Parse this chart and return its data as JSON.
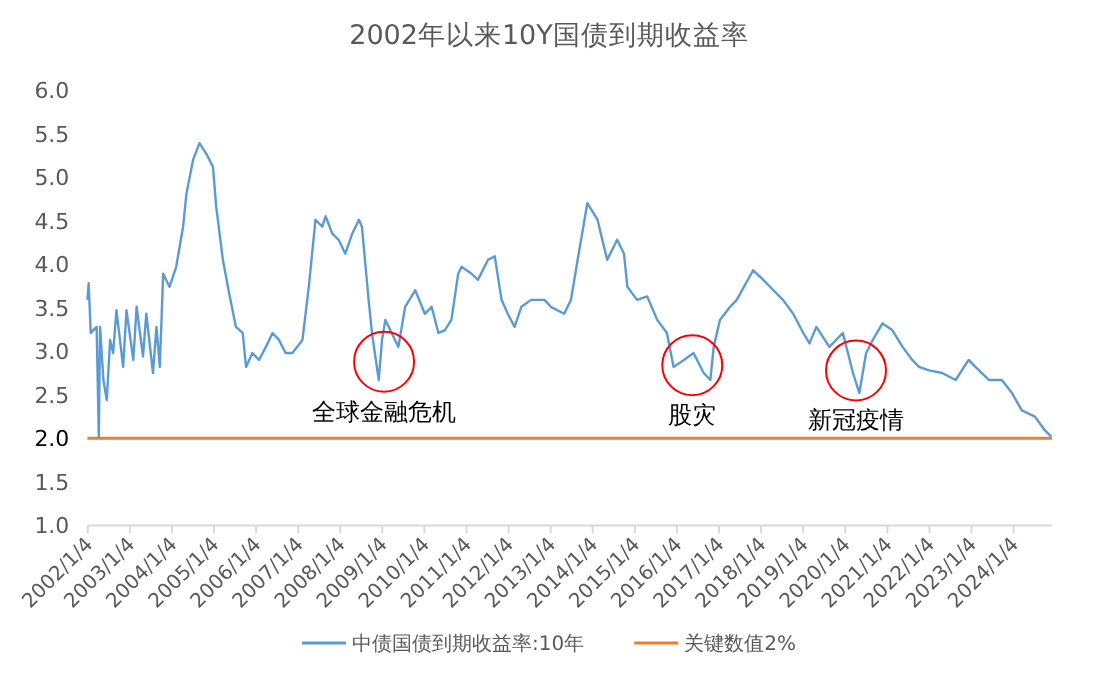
{
  "chart_data": {
    "type": "line",
    "title": "2002年以来10Y国债到期收益率",
    "series": [
      {
        "name": "中债国债到期收益率:10年",
        "color": "#5b9bd5",
        "x": [
          "2002-01-01",
          "2002-01-12",
          "2002-01-30",
          "2002-03-22",
          "2002-04-10",
          "2002-04-21",
          "2002-05-20",
          "2002-06-18",
          "2002-07-17",
          "2002-08-12",
          "2002-09-10",
          "2002-11-07",
          "2002-12-06",
          "2003-02-03",
          "2003-03-04",
          "2003-04-28",
          "2003-05-27",
          "2003-07-24",
          "2003-08-23",
          "2003-09-21",
          "2003-10-20",
          "2003-12-14",
          "2004-02-10",
          "2004-04-10",
          "2004-05-09",
          "2004-07-06",
          "2004-08-30",
          "2004-10-27",
          "2004-12-25",
          "2005-01-23",
          "2005-03-22",
          "2005-05-16",
          "2005-07-13",
          "2005-09-10",
          "2005-10-09",
          "2005-12-03",
          "2006-01-30",
          "2006-03-30",
          "2006-05-27",
          "2006-07-21",
          "2006-09-17",
          "2006-11-15",
          "2007-02-10",
          "2007-04-06",
          "2007-05-05",
          "2007-06-03",
          "2007-08-01",
          "2007-08-30",
          "2007-10-27",
          "2007-12-21",
          "2008-02-17",
          "2008-04-17",
          "2008-06-14",
          "2008-07-10",
          "2008-09-06",
          "2008-10-05",
          "2008-12-03",
          "2009-01-01",
          "2009-01-30",
          "2009-03-26",
          "2009-05-23",
          "2009-07-21",
          "2009-10-16",
          "2010-01-08",
          "2010-03-08",
          "2010-05-05",
          "2010-06-29",
          "2010-08-26",
          "2010-10-24",
          "2010-11-22",
          "2011-02-17",
          "2011-04-13",
          "2011-07-10",
          "2011-09-06",
          "2011-11-04",
          "2011-12-28",
          "2012-02-25",
          "2012-04-24",
          "2012-07-17",
          "2012-11-11",
          "2013-01-05",
          "2013-05-01",
          "2013-06-29",
          "2013-08-26",
          "2013-11-18",
          "2014-02-14",
          "2014-05-09",
          "2014-08-04",
          "2014-10-02",
          "2014-10-31",
          "2015-01-23",
          "2015-04-21",
          "2015-07-17",
          "2015-10-09",
          "2015-12-06",
          "2016-03-04",
          "2016-05-27",
          "2016-08-23",
          "2016-10-20",
          "2016-11-18",
          "2017-01-12",
          "2017-04-10",
          "2017-06-07",
          "2017-10-27",
          "2018-01-23",
          "2018-04-21",
          "2018-07-13",
          "2018-10-09",
          "2019-01-05",
          "2019-02-28",
          "2019-04-28",
          "2019-08-19",
          "2019-12-14",
          "2020-03-11",
          "2020-05-05",
          "2020-07-03",
          "2020-08-30",
          "2020-11-22",
          "2021-02-17",
          "2021-05-16",
          "2021-08-08",
          "2021-10-05",
          "2022-01-01",
          "2022-04-24",
          "2022-08-19",
          "2022-12-10",
          "2023-02-07",
          "2023-06-03",
          "2023-09-24",
          "2023-12-21",
          "2024-03-15",
          "2024-07-06",
          "2024-10-02",
          "2024-11-26"
        ],
        "values": [
          3.59,
          3.78,
          3.21,
          3.28,
          2.02,
          3.28,
          2.67,
          2.44,
          3.13,
          2.98,
          3.47,
          2.82,
          3.47,
          2.9,
          3.51,
          2.94,
          3.43,
          2.75,
          3.28,
          2.82,
          3.89,
          3.74,
          3.97,
          4.43,
          4.81,
          5.2,
          5.39,
          5.27,
          5.12,
          4.66,
          4.05,
          3.66,
          3.28,
          3.21,
          2.82,
          2.98,
          2.9,
          3.05,
          3.21,
          3.13,
          2.98,
          2.98,
          3.13,
          3.74,
          4.12,
          4.51,
          4.43,
          4.55,
          4.35,
          4.28,
          4.12,
          4.35,
          4.51,
          4.43,
          3.59,
          3.21,
          2.67,
          3.13,
          3.36,
          3.21,
          3.05,
          3.51,
          3.7,
          3.43,
          3.51,
          3.21,
          3.24,
          3.36,
          3.89,
          3.97,
          3.89,
          3.82,
          4.05,
          4.09,
          3.59,
          3.43,
          3.28,
          3.51,
          3.59,
          3.59,
          3.51,
          3.43,
          3.59,
          4.05,
          4.7,
          4.51,
          4.05,
          4.28,
          4.12,
          3.74,
          3.59,
          3.63,
          3.36,
          3.21,
          2.82,
          2.9,
          2.98,
          2.75,
          2.67,
          3.05,
          3.36,
          3.51,
          3.59,
          3.93,
          3.82,
          3.7,
          3.59,
          3.43,
          3.21,
          3.09,
          3.28,
          3.05,
          3.21,
          2.75,
          2.52,
          2.98,
          3.13,
          3.32,
          3.24,
          3.05,
          2.9,
          2.82,
          2.78,
          2.75,
          2.67,
          2.9,
          2.82,
          2.67,
          2.67,
          2.52,
          2.32,
          2.25,
          2.09,
          2.02
        ]
      }
    ],
    "xlim": [
      "2002-01-01",
      "2024-12-02"
    ],
    "xticks": [
      {
        "value": "2002-01-04",
        "label": "2002/1/4"
      },
      {
        "value": "2003-01-04",
        "label": "2003/1/4"
      },
      {
        "value": "2004-01-04",
        "label": "2004/1/4"
      },
      {
        "value": "2005-01-04",
        "label": "2005/1/4"
      },
      {
        "value": "2006-01-04",
        "label": "2006/1/4"
      },
      {
        "value": "2007-01-04",
        "label": "2007/1/4"
      },
      {
        "value": "2008-01-04",
        "label": "2008/1/4"
      },
      {
        "value": "2009-01-04",
        "label": "2009/1/4"
      },
      {
        "value": "2010-01-04",
        "label": "2010/1/4"
      },
      {
        "value": "2011-01-04",
        "label": "2011/1/4"
      },
      {
        "value": "2012-01-04",
        "label": "2012/1/4"
      },
      {
        "value": "2013-01-04",
        "label": "2013/1/4"
      },
      {
        "value": "2014-01-04",
        "label": "2014/1/4"
      },
      {
        "value": "2015-01-04",
        "label": "2015/1/4"
      },
      {
        "value": "2016-01-04",
        "label": "2016/1/4"
      },
      {
        "value": "2017-01-04",
        "label": "2017/1/4"
      },
      {
        "value": "2018-01-04",
        "label": "2018/1/4"
      },
      {
        "value": "2019-01-04",
        "label": "2019/1/4"
      },
      {
        "value": "2020-01-04",
        "label": "2020/1/4"
      },
      {
        "value": "2021-01-04",
        "label": "2021/1/4"
      },
      {
        "value": "2022-01-04",
        "label": "2022/1/4"
      },
      {
        "value": "2023-01-04",
        "label": "2023/1/4"
      },
      {
        "value": "2024-01-04",
        "label": "2024/1/4"
      }
    ],
    "ylim": [
      1.0,
      6.0
    ],
    "yticks": [
      {
        "value": 1.0,
        "label": "1.0"
      },
      {
        "value": 1.5,
        "label": "1.5"
      },
      {
        "value": 2.0,
        "label": "2.0"
      },
      {
        "value": 2.5,
        "label": "2.5"
      },
      {
        "value": 3.0,
        "label": "3.0"
      },
      {
        "value": 3.5,
        "label": "3.5"
      },
      {
        "value": 4.0,
        "label": "4.0"
      },
      {
        "value": 4.5,
        "label": "4.5"
      },
      {
        "value": 5.0,
        "label": "5.0"
      },
      {
        "value": 5.5,
        "label": "5.5"
      },
      {
        "value": 6.0,
        "label": "6.0"
      }
    ],
    "ref_lines": [
      {
        "axis": "y",
        "value": 2.0,
        "label": "关键数值2%",
        "color": "#ed7d31"
      }
    ],
    "annotations": [
      {
        "text": "全球金融危机",
        "x": "2009-01-19",
        "y": 2.88
      },
      {
        "text": "股灾",
        "x": "2016-05-16",
        "y": 2.84
      },
      {
        "text": "新冠疫情",
        "x": "2020-04-06",
        "y": 2.78
      }
    ],
    "grid": false,
    "legend": "bottom",
    "marker": "none",
    "line_style": "solid"
  }
}
